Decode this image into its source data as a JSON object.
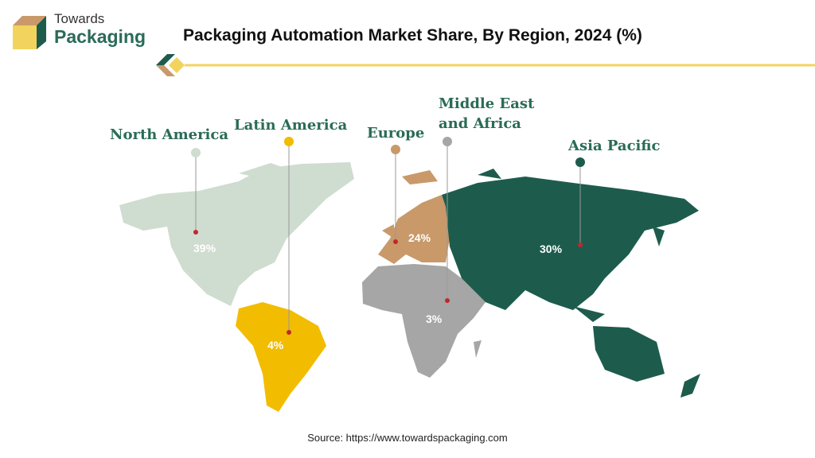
{
  "brand": {
    "line1": "Towards",
    "line2": "Packaging"
  },
  "title": "Packaging Automation Market Share, By Region, 2024 (%)",
  "regions": [
    {
      "name": "North America",
      "value": "39%",
      "color": "#cfdcd0",
      "pin": "#cfdcd0"
    },
    {
      "name": "Latin America",
      "value": "4%",
      "color": "#f2bc00",
      "pin": "#f2bc00"
    },
    {
      "name": "Europe",
      "value": "24%",
      "color": "#c9996a",
      "pin": "#c9996a"
    },
    {
      "name": "Middle East and Africa",
      "line1": "Middle East",
      "line2": "and Africa",
      "value": "3%",
      "color": "#a6a6a6",
      "pin": "#a6a6a6"
    },
    {
      "name": "Asia Pacific",
      "value": "30%",
      "color": "#1d5c4d",
      "pin": "#1d5c4d"
    }
  ],
  "source": "Source: https://www.towardspackaging.com"
}
